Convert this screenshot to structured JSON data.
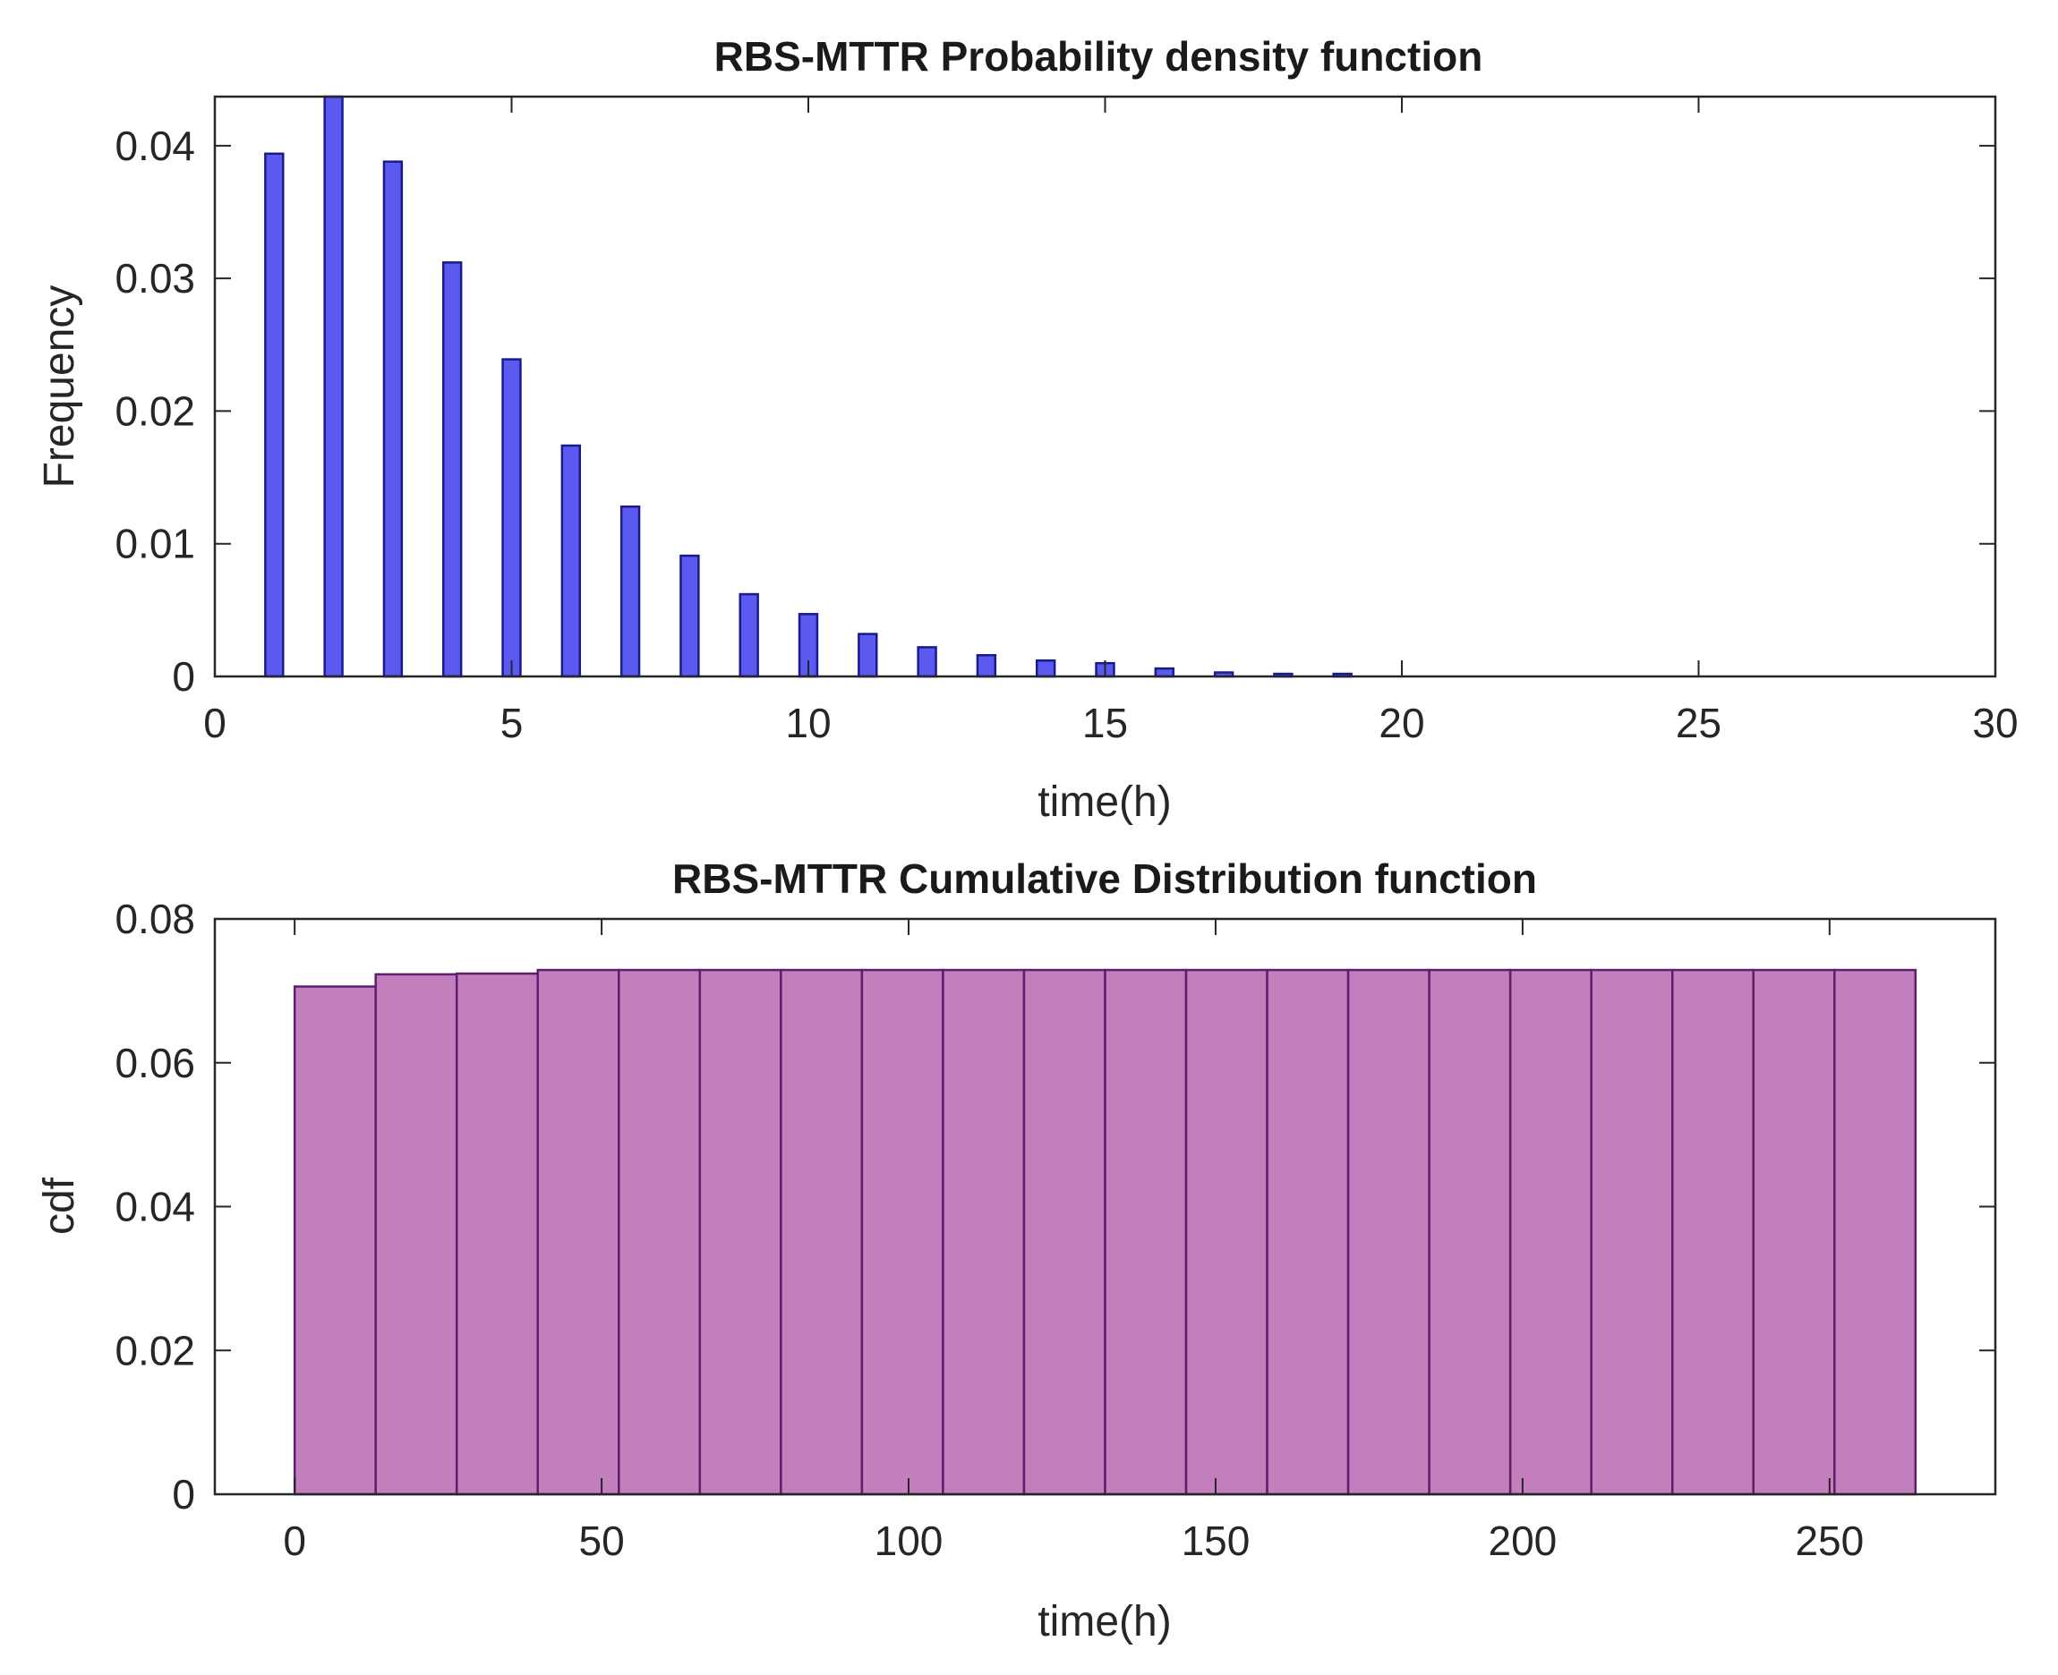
{
  "chart_data": [
    {
      "type": "bar",
      "title": "RBS-MTTR Probability density function",
      "xlabel": "time(h)",
      "ylabel": "Frequency",
      "xlim": [
        0,
        30
      ],
      "ylim": [
        0,
        0.0437
      ],
      "xticks": [
        0,
        5,
        10,
        15,
        20,
        25,
        30
      ],
      "yticks": [
        0,
        0.01,
        0.02,
        0.03,
        0.04
      ],
      "ytick_labels": [
        "0",
        "0.01",
        "0.02",
        "0.03",
        "0.04"
      ],
      "bar_width": 0.3,
      "color": "#5a5af0",
      "edge_color": "#1a1a8c",
      "x": [
        1,
        2,
        3,
        4,
        5,
        6,
        7,
        8,
        9,
        10,
        11,
        12,
        13,
        14,
        15,
        16,
        17,
        18,
        19
      ],
      "values": [
        0.0394,
        0.0437,
        0.0388,
        0.0312,
        0.0239,
        0.0174,
        0.0128,
        0.0091,
        0.0062,
        0.0047,
        0.0032,
        0.0022,
        0.0016,
        0.0012,
        0.001,
        0.0006,
        0.0003,
        0.0002,
        0.0002
      ],
      "grid": false
    },
    {
      "type": "bar",
      "title": "RBS-MTTR Cumulative Distribution function",
      "xlabel": "time(h)",
      "ylabel": "cdf",
      "xlim": [
        -13,
        277
      ],
      "ylim": [
        0,
        0.08
      ],
      "xticks": [
        0,
        50,
        100,
        150,
        200,
        250
      ],
      "yticks": [
        0,
        0.02,
        0.04,
        0.06,
        0.08
      ],
      "ytick_labels": [
        "0",
        "0.02",
        "0.04",
        "0.06",
        "0.08"
      ],
      "bin_edges": [
        0,
        13.2,
        26.4,
        39.6,
        52.8,
        66,
        79.2,
        92.4,
        105.6,
        118.8,
        132,
        145.2,
        158.4,
        171.6,
        184.8,
        198,
        211.2,
        224.4,
        237.6,
        250.8,
        264
      ],
      "values": [
        0.0706,
        0.0723,
        0.0724,
        0.0729,
        0.0729,
        0.0729,
        0.0729,
        0.0729,
        0.0729,
        0.0729,
        0.0729,
        0.0729,
        0.0729,
        0.0729,
        0.0729,
        0.0729,
        0.0729,
        0.0729,
        0.0729,
        0.0729
      ],
      "color": "#c37fbd",
      "edge_color": "#5c1f6b",
      "grid": false
    }
  ]
}
